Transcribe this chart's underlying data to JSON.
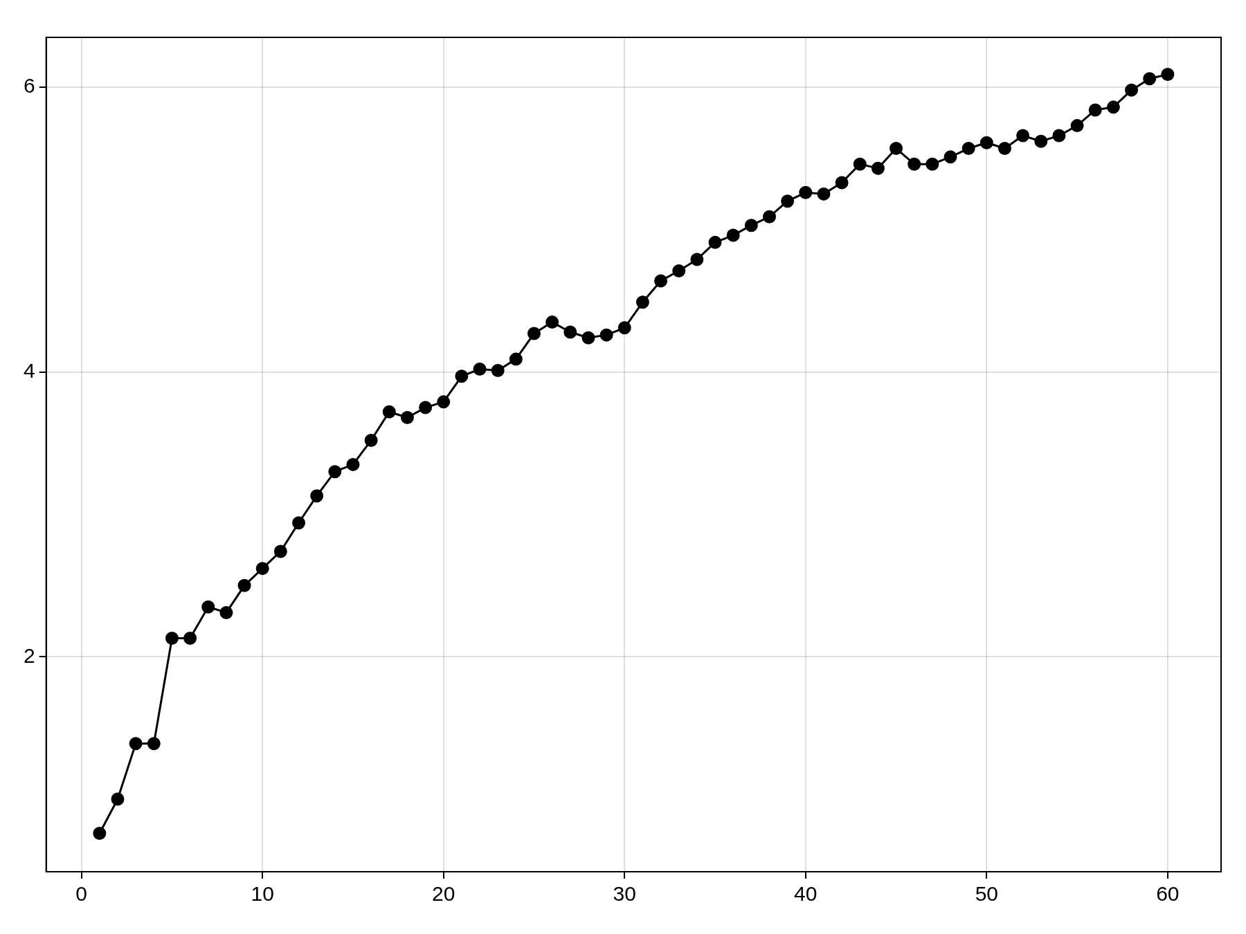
{
  "chart_data": {
    "type": "line",
    "x": [
      1,
      2,
      3,
      4,
      5,
      6,
      7,
      8,
      9,
      10,
      11,
      12,
      13,
      14,
      15,
      16,
      17,
      18,
      19,
      20,
      21,
      22,
      23,
      24,
      25,
      26,
      27,
      28,
      29,
      30,
      31,
      32,
      33,
      34,
      35,
      36,
      37,
      38,
      39,
      40,
      41,
      42,
      43,
      44,
      45,
      46,
      47,
      48,
      49,
      50,
      51,
      52,
      53,
      54,
      55,
      56,
      57,
      58,
      59,
      60
    ],
    "series": [
      {
        "color": "#000000",
        "values": [
          0.76,
          1.0,
          1.39,
          1.39,
          2.13,
          2.13,
          2.35,
          2.31,
          2.5,
          2.62,
          2.74,
          2.94,
          3.13,
          3.3,
          3.35,
          3.52,
          3.72,
          3.68,
          3.75,
          3.79,
          3.97,
          4.02,
          4.01,
          4.09,
          4.27,
          4.35,
          4.28,
          4.24,
          4.26,
          4.31,
          4.49,
          4.64,
          4.71,
          4.79,
          4.91,
          4.96,
          5.03,
          5.09,
          5.2,
          5.26,
          5.25,
          5.33,
          5.46,
          5.43,
          5.57,
          5.46,
          5.46,
          5.51,
          5.57,
          5.61,
          5.57,
          5.66,
          5.62,
          5.66,
          5.73,
          5.84,
          5.86,
          5.98,
          6.06,
          6.09
        ]
      }
    ],
    "xlim": [
      -1.95,
      62.95
    ],
    "xticks": [
      0,
      10,
      20,
      30,
      40,
      50,
      60
    ],
    "ylim": [
      0.49,
      6.35
    ],
    "yticks": [
      2,
      4,
      6
    ],
    "grid": true,
    "legend": false,
    "marker": "circle",
    "line_style": "solid"
  }
}
